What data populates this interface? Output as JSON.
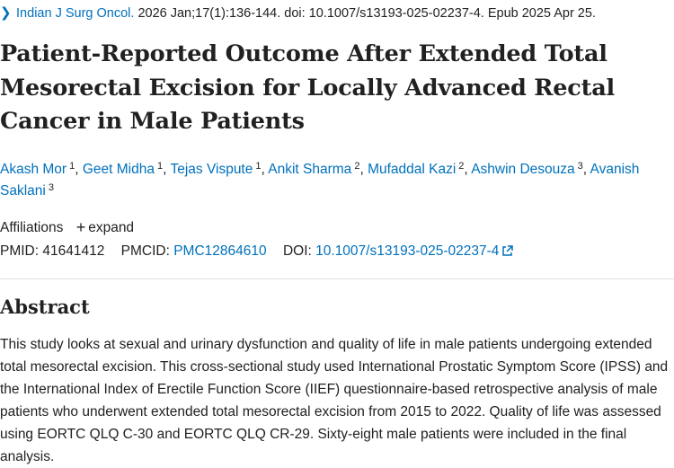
{
  "citation": {
    "journal": "Indian J Surg Oncol.",
    "details": " 2026 Jan;17(1):136-144. doi: 10.1007/s13193-025-02237-4. Epub 2025 Apr 25."
  },
  "title": "Patient-Reported Outcome After Extended Total Mesorectal Excision for Locally Advanced Rectal Cancer in Male Patients",
  "authors": [
    {
      "name": "Akash Mor",
      "aff": "1"
    },
    {
      "name": "Geet Midha",
      "aff": "1"
    },
    {
      "name": "Tejas Vispute",
      "aff": "1"
    },
    {
      "name": "Ankit Sharma",
      "aff": "2"
    },
    {
      "name": "Mufaddal Kazi",
      "aff": "2"
    },
    {
      "name": "Ashwin Desouza",
      "aff": "3"
    },
    {
      "name": "Avanish Saklani",
      "aff": "3"
    }
  ],
  "affiliations": {
    "label": "Affiliations",
    "expand_label": "expand",
    "expand_icon": "plus-icon"
  },
  "ids": {
    "pmid_label": "PMID:",
    "pmid": "41641412",
    "pmcid_label": "PMCID:",
    "pmcid": "PMC12864610",
    "doi_label": "DOI:",
    "doi": "10.1007/s13193-025-02237-4",
    "doi_icon": "external-link-icon"
  },
  "abstract": {
    "heading": "Abstract",
    "text": "This study looks at sexual and urinary dysfunction and quality of life in male patients undergoing extended total mesorectal excision. This cross-sectional study used International Prostatic Symptom Score (IPSS) and the International Index of Erectile Function Score (IIEF) questionnaire-based retrospective analysis of male patients who underwent extended total mesorectal excision from 2015 to 2022. Quality of life was assessed using EORTC QLQ C-30 and EORTC QLQ CR-29. Sixty-eight male patients were included in the final analysis."
  },
  "colors": {
    "link": "#0071bc",
    "text": "#212121",
    "divider": "#e0e0e0"
  }
}
